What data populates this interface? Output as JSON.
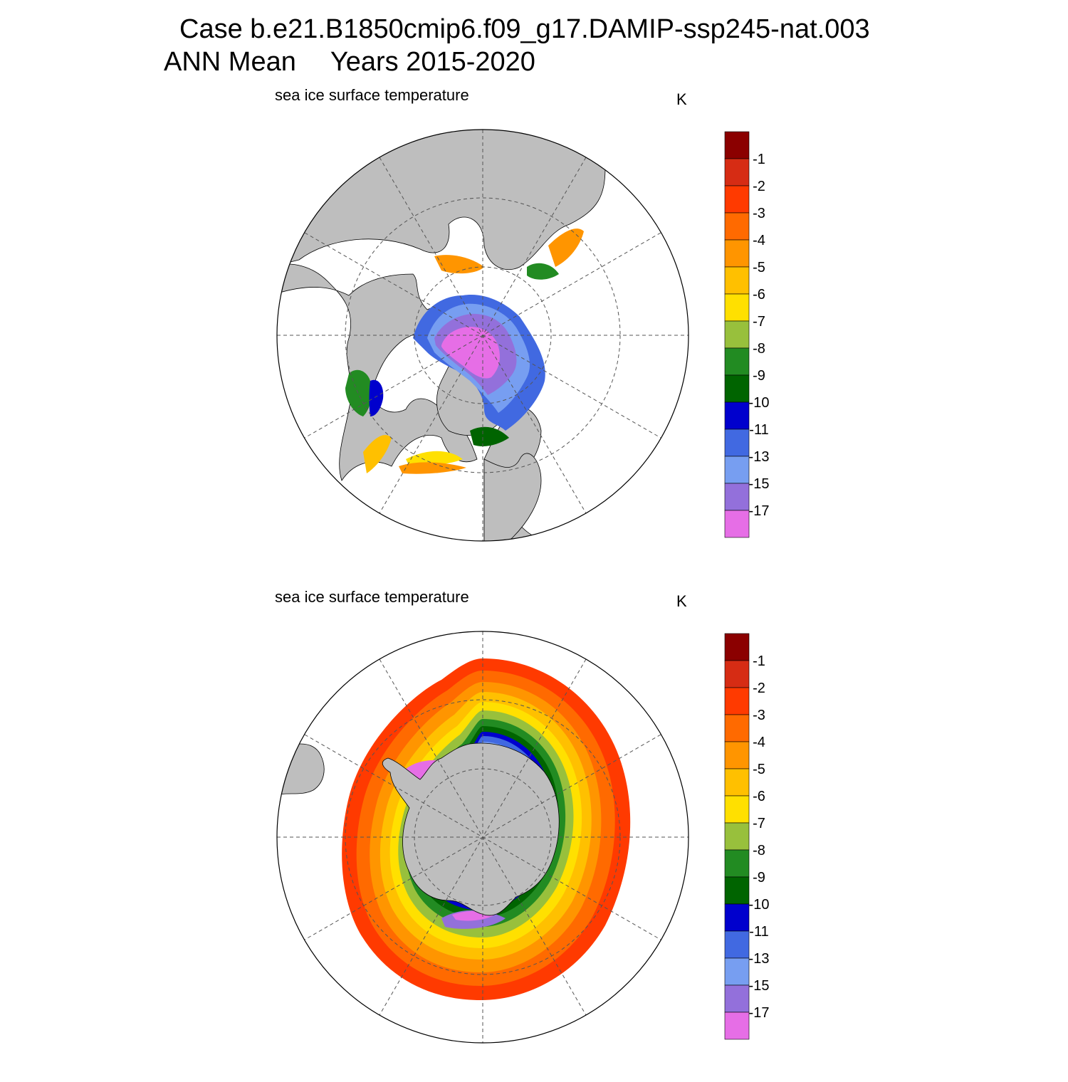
{
  "header": {
    "case_line": "Case b.e21.B1850cmip6.f09_g17.DAMIP-ssp245-nat.003",
    "season": "ANN Mean",
    "years": "Years 2015-2020"
  },
  "panels": [
    {
      "title": "sea ice surface temperature",
      "units": "K",
      "hemisphere": "north"
    },
    {
      "title": "sea ice surface temperature",
      "units": "K",
      "hemisphere": "south"
    }
  ],
  "colorbar": {
    "labels": [
      "-1",
      "-2",
      "-3",
      "-4",
      "-5",
      "-6",
      "-7",
      "-8",
      "-9",
      "-10",
      "-11",
      "-13",
      "-15",
      "-17"
    ],
    "colors": [
      "#8b0000",
      "#d62c14",
      "#ff3a00",
      "#ff6a00",
      "#ff9500",
      "#ffc000",
      "#ffe000",
      "#98c03c",
      "#228b22",
      "#006400",
      "#0000cd",
      "#4169e1",
      "#779ef1",
      "#9370db",
      "#e66ee6"
    ]
  },
  "map_colors": {
    "land": "#bebebe",
    "ocean": "#ffffff",
    "grid": "#555555"
  }
}
